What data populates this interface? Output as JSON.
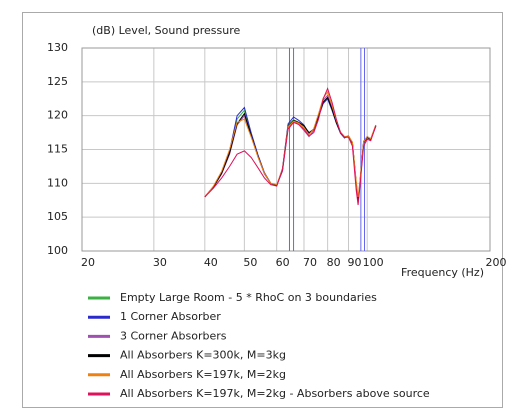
{
  "chart_data": {
    "type": "line",
    "y_label": "(dB)  Level, Sound pressure",
    "x_label": "Frequency  (Hz)",
    "log_x": true,
    "grid": true,
    "xlim": [
      20,
      200
    ],
    "ylim": [
      100,
      130
    ],
    "xticks": [
      20,
      30,
      40,
      50,
      60,
      70,
      80,
      90,
      100,
      200
    ],
    "yticks": [
      100,
      105,
      110,
      115,
      120,
      125,
      130
    ],
    "vlines": [
      64.5,
      66,
      96.5,
      98.5
    ],
    "vline_color": "#6666ee",
    "x": [
      40,
      42,
      44,
      46,
      48,
      50,
      52,
      54,
      56,
      58,
      60,
      62,
      64,
      66,
      68,
      70,
      72,
      74,
      76,
      78,
      80,
      82,
      84,
      86,
      88,
      90,
      92,
      94,
      95,
      96,
      98,
      100,
      102,
      105
    ],
    "series": [
      {
        "name": "Empty Large Room - 5 * RhoC on 3 boundaries",
        "color": "#3cb043",
        "values": [
          108,
          109.5,
          111.5,
          114.6,
          119.5,
          120.8,
          117.2,
          114,
          111.5,
          110,
          109.7,
          112,
          118.6,
          119.4,
          119,
          118.4,
          117.4,
          118,
          120,
          122,
          122.6,
          121,
          119,
          117.5,
          116.8,
          117,
          116,
          110,
          107.6,
          110,
          116,
          116.8,
          116.5,
          118.5
        ]
      },
      {
        "name": "1 Corner Absorber",
        "color": "#2b2bcc",
        "values": [
          108,
          109.5,
          111.6,
          114.8,
          120,
          121.2,
          117.4,
          114.2,
          111.6,
          110,
          109.6,
          112.2,
          118.8,
          119.8,
          119.3,
          118.6,
          117.3,
          118,
          119.8,
          121.8,
          122.5,
          120.8,
          118.9,
          117.4,
          116.7,
          117,
          115.9,
          110,
          107.2,
          110,
          116.2,
          116.9,
          116.5,
          118.6
        ]
      },
      {
        "name": "3 Corner Absorbers",
        "color": "#a050b0",
        "values": [
          108,
          109.4,
          111.4,
          114.3,
          118.6,
          120,
          116.9,
          113.9,
          111.4,
          110,
          109.7,
          111.8,
          118.2,
          119.2,
          118.7,
          117.8,
          116.9,
          117.8,
          120.2,
          122.3,
          123,
          121.2,
          119.2,
          117.5,
          116.8,
          116.9,
          115.9,
          109.8,
          107.3,
          109.8,
          115.9,
          116.7,
          116.4,
          118.4
        ]
      },
      {
        "name": "All Absorbers K=300k, M=3kg",
        "color": "#000000",
        "values": [
          108,
          109.5,
          111.5,
          114.5,
          118.8,
          120.3,
          117,
          114,
          111.5,
          110,
          109.7,
          112,
          118.5,
          119.3,
          119,
          118.5,
          117.5,
          118,
          120,
          122,
          122.7,
          121,
          119,
          117.5,
          116.8,
          117,
          116,
          110,
          107.5,
          110,
          116,
          116.8,
          116.5,
          118.5
        ]
      },
      {
        "name": "All Absorbers K=197k, M=2kg",
        "color": "#f08010",
        "values": [
          108,
          109.6,
          111.8,
          115,
          119,
          119.5,
          116.8,
          113.9,
          111.5,
          110,
          109.8,
          112.1,
          118.4,
          119.2,
          118.9,
          118.2,
          117.2,
          118.1,
          120.3,
          122.6,
          123.5,
          121.5,
          119.3,
          117.6,
          116.9,
          117,
          116.1,
          110.3,
          108,
          110.3,
          116.1,
          116.9,
          116.6,
          118.6
        ]
      },
      {
        "name": "All Absorbers K=197k, M=2kg - Absorbers above source",
        "color": "#e0105a",
        "values": [
          108,
          109.3,
          110.8,
          112.5,
          114.3,
          114.8,
          113.8,
          112.3,
          110.8,
          109.8,
          109.6,
          112,
          118,
          119,
          118.7,
          118,
          117,
          117.5,
          119.5,
          122.5,
          124,
          122,
          119.5,
          117.5,
          116.8,
          116.8,
          115.5,
          109,
          106.8,
          109.5,
          115.5,
          116.5,
          116.3,
          118.5
        ]
      }
    ]
  }
}
